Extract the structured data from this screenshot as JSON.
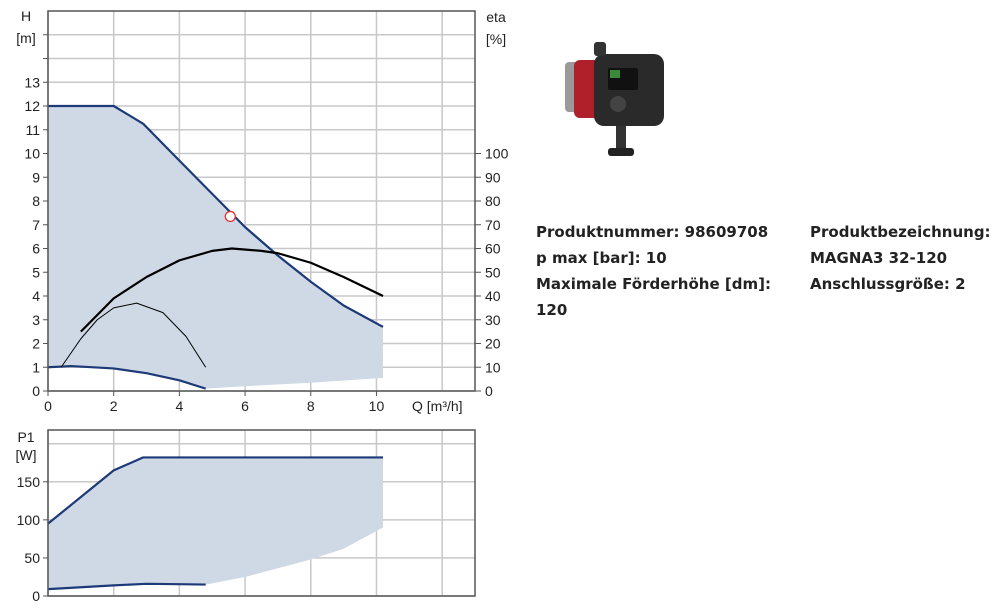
{
  "product": {
    "number_label": "Produktnummer: 98609708",
    "pmax_label": "p max [bar]: 10",
    "max_head_label": "Maximale Förderhöhe [dm]:",
    "max_head_value": "120",
    "designation_label": "Produktbezeichnung:",
    "designation_value": "MAGNA3 32-120",
    "connection_label": "Anschlussgröße: 2"
  },
  "chart_data": [
    {
      "type": "line",
      "xlabel": "Q [m³/h]",
      "ylabel": [
        "H",
        "[m]"
      ],
      "y2label": [
        "eta",
        "[%]"
      ],
      "xlim": [
        0,
        13
      ],
      "ylim": [
        0,
        16
      ],
      "y2lim": [
        0,
        160
      ],
      "xticks": [
        0,
        2,
        4,
        6,
        8,
        10
      ],
      "yticks": [
        0,
        1,
        2,
        3,
        4,
        5,
        6,
        7,
        8,
        9,
        10,
        11,
        12,
        13
      ],
      "y2ticks": [
        0,
        10,
        20,
        30,
        40,
        50,
        60,
        70,
        80,
        90,
        100
      ],
      "grid": true,
      "colors": {
        "area": "#cfd9e5",
        "curve": "#1d3a78",
        "eta": "#000000",
        "point": "#e03030"
      },
      "series": [
        {
          "id": "H-max",
          "axis": "y",
          "x": [
            0,
            2,
            2.9,
            4,
            5,
            6,
            7,
            8,
            9,
            10.2
          ],
          "y": [
            12,
            12,
            11.25,
            9.7,
            8.3,
            6.9,
            5.7,
            4.6,
            3.6,
            2.7
          ]
        },
        {
          "id": "H-min",
          "axis": "y",
          "x": [
            0,
            0.7,
            2,
            3,
            4,
            4.8
          ],
          "y": [
            1,
            1.05,
            0.95,
            0.75,
            0.45,
            0.1
          ]
        },
        {
          "id": "eta-max",
          "axis": "y2",
          "x": [
            1,
            2,
            3,
            4,
            5,
            5.6,
            6.5,
            7,
            8,
            9,
            10.2
          ],
          "y": [
            25,
            39,
            48,
            55,
            59,
            60,
            59,
            58,
            54,
            48,
            40
          ]
        },
        {
          "id": "eta-min",
          "axis": "y2",
          "x": [
            0.4,
            1,
            1.5,
            2,
            2.7,
            3.5,
            4.2,
            4.8
          ],
          "y": [
            10,
            22,
            30,
            35,
            37,
            33,
            23,
            10
          ]
        }
      ],
      "area_lower": {
        "x": [
          0,
          0.7,
          2,
          3,
          4,
          4.8,
          6,
          8,
          10.2
        ],
        "y": [
          1,
          1.05,
          0.95,
          0.75,
          0.45,
          0.1,
          0.2,
          0.35,
          0.55
        ]
      },
      "operating_point": {
        "x": 5.55,
        "y": 7.35
      }
    },
    {
      "type": "line",
      "ylabel": [
        "P1",
        "[W]"
      ],
      "xlim": [
        0,
        13
      ],
      "ylim": [
        0,
        218
      ],
      "yticks": [
        0,
        50,
        100,
        150
      ],
      "grid_y": [
        0,
        50,
        100,
        150,
        200
      ],
      "grid": true,
      "series": [
        {
          "id": "P1-max",
          "x": [
            0,
            2,
            2.9,
            10.2
          ],
          "y": [
            95,
            165,
            182,
            182
          ]
        },
        {
          "id": "P1-min",
          "x": [
            0,
            2,
            3,
            4,
            4.8
          ],
          "y": [
            9,
            14,
            16,
            15.5,
            15
          ]
        }
      ],
      "area_lower": {
        "x": [
          0,
          2,
          3,
          4,
          4.8,
          6,
          8,
          9,
          10.2
        ],
        "y": [
          9,
          14,
          16,
          15.5,
          15,
          25,
          48,
          62,
          90
        ]
      }
    }
  ]
}
